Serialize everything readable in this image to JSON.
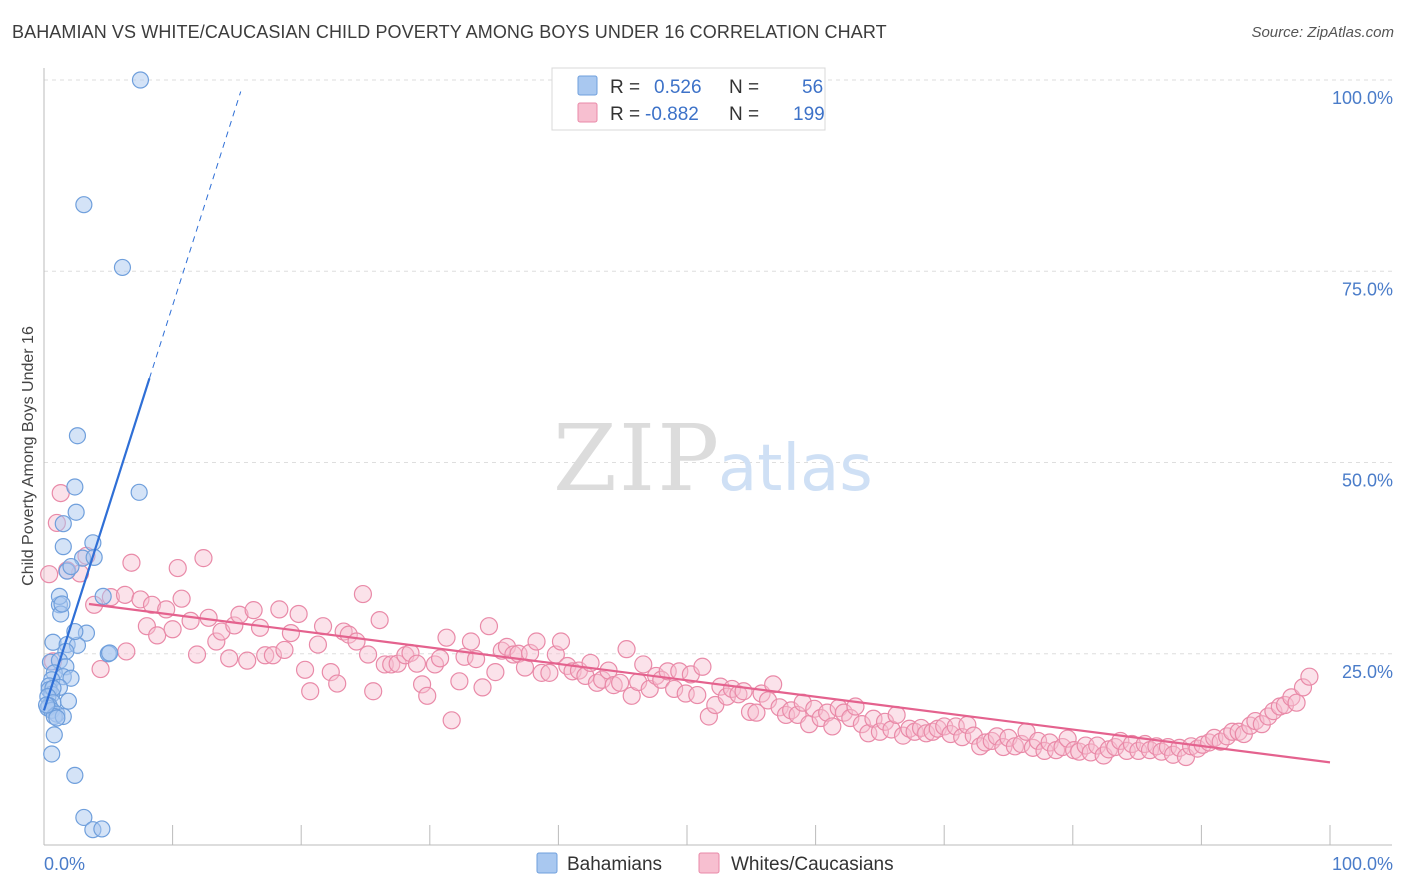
{
  "title": "BAHAMIAN VS WHITE/CAUCASIAN CHILD POVERTY AMONG BOYS UNDER 16 CORRELATION CHART",
  "source": "Source: ZipAtlas.com",
  "watermark": {
    "zip": "ZIP",
    "atlas": "atlas"
  },
  "legend_top": {
    "rows": [
      {
        "r_label": "R =",
        "r_value": "0.526",
        "n_label": "N =",
        "n_value": "56",
        "color": "#a9c8f0",
        "stroke": "#6f9fdc"
      },
      {
        "r_label": "R =",
        "r_value": "-0.882",
        "n_label": "N =",
        "n_value": "199",
        "color": "#f7bfd0",
        "stroke": "#e98aa8"
      }
    ]
  },
  "legend_bottom": {
    "items": [
      {
        "label": "Bahamians",
        "color": "#a9c8f0",
        "stroke": "#6f9fdc"
      },
      {
        "label": "Whites/Caucasians",
        "color": "#f7bfd0",
        "stroke": "#e98aa8"
      }
    ]
  },
  "chart_data": {
    "type": "scatter",
    "title": "BAHAMIAN VS WHITE/CAUCASIAN CHILD POVERTY AMONG BOYS UNDER 16 CORRELATION CHART",
    "xlabel": "",
    "ylabel": "Child Poverty Among Boys Under 16",
    "xlim": [
      0,
      100
    ],
    "ylim": [
      0,
      100
    ],
    "x_tick_labels": [
      "0.0%",
      "100.0%"
    ],
    "y_tick_labels": [
      "25.0%",
      "50.0%",
      "75.0%",
      "100.0%"
    ],
    "y_ticks": [
      25,
      50,
      75,
      100
    ],
    "grid": "horizontal dashed",
    "legend_position": "top-center",
    "colors": {
      "bahamians": "#a9c8f0",
      "bahamians_line": "#2f6fd6",
      "whites": "#f7bfd0",
      "whites_line": "#e4628e"
    },
    "series": [
      {
        "name": "Bahamians",
        "trend": {
          "x": [
            0,
            8.2
          ],
          "y": [
            17.6,
            61.0
          ],
          "dashed_extension": {
            "x": [
              8.2,
              15.3
            ],
            "y": [
              61.0,
              98.5
            ]
          }
        },
        "points": [
          [
            7.5,
            100
          ],
          [
            3.1,
            83.7
          ],
          [
            6.1,
            75.5
          ],
          [
            2.6,
            53.5
          ],
          [
            7.4,
            46.1
          ],
          [
            2.4,
            46.8
          ],
          [
            2.5,
            43.5
          ],
          [
            1.5,
            42.0
          ],
          [
            1.5,
            39.0
          ],
          [
            3.8,
            39.5
          ],
          [
            3.0,
            37.5
          ],
          [
            3.9,
            37.6
          ],
          [
            1.8,
            35.8
          ],
          [
            2.1,
            36.4
          ],
          [
            1.2,
            31.4
          ],
          [
            1.2,
            32.5
          ],
          [
            1.3,
            30.2
          ],
          [
            4.6,
            32.5
          ],
          [
            1.4,
            31.5
          ],
          [
            3.3,
            27.7
          ],
          [
            0.7,
            26.5
          ],
          [
            1.8,
            26.2
          ],
          [
            2.6,
            26.1
          ],
          [
            2.4,
            27.9
          ],
          [
            5.0,
            25.0
          ],
          [
            5.1,
            25.1
          ],
          [
            1.7,
            25.3
          ],
          [
            0.5,
            23.9
          ],
          [
            1.2,
            24.1
          ],
          [
            1.7,
            23.3
          ],
          [
            0.8,
            22.5
          ],
          [
            1.5,
            22.0
          ],
          [
            0.6,
            21.6
          ],
          [
            2.1,
            21.8
          ],
          [
            0.4,
            20.8
          ],
          [
            1.2,
            20.6
          ],
          [
            0.4,
            20.3
          ],
          [
            0.6,
            19.7
          ],
          [
            0.7,
            20.5
          ],
          [
            0.3,
            19.4
          ],
          [
            0.7,
            18.6
          ],
          [
            1.9,
            18.8
          ],
          [
            0.4,
            18.2
          ],
          [
            0.3,
            17.9
          ],
          [
            0.6,
            17.6
          ],
          [
            1.0,
            17.1
          ],
          [
            0.8,
            16.8
          ],
          [
            1.5,
            16.8
          ],
          [
            0.8,
            14.4
          ],
          [
            0.6,
            11.9
          ],
          [
            2.4,
            9.1
          ],
          [
            3.1,
            3.6
          ],
          [
            3.8,
            2.0
          ],
          [
            4.5,
            2.1
          ],
          [
            0.2,
            18.3
          ],
          [
            1.0,
            16.6
          ]
        ]
      },
      {
        "name": "Whites/Caucasians",
        "trend": {
          "x": [
            3.5,
            100
          ],
          "y": [
            31.5,
            10.8
          ]
        },
        "points": [
          [
            0.4,
            35.4
          ],
          [
            1.0,
            42.1
          ],
          [
            1.3,
            46.0
          ],
          [
            2.8,
            35.5
          ],
          [
            3.3,
            37.8
          ],
          [
            3.9,
            31.4
          ],
          [
            4.4,
            23.0
          ],
          [
            5.2,
            32.4
          ],
          [
            6.3,
            32.7
          ],
          [
            6.4,
            25.3
          ],
          [
            6.8,
            36.9
          ],
          [
            7.5,
            32.1
          ],
          [
            8.0,
            28.6
          ],
          [
            8.4,
            31.4
          ],
          [
            8.8,
            27.4
          ],
          [
            9.5,
            30.8
          ],
          [
            10.0,
            28.2
          ],
          [
            10.4,
            36.2
          ],
          [
            10.7,
            32.2
          ],
          [
            11.4,
            29.3
          ],
          [
            11.9,
            24.9
          ],
          [
            12.4,
            37.5
          ],
          [
            12.8,
            29.7
          ],
          [
            13.4,
            26.6
          ],
          [
            13.8,
            27.9
          ],
          [
            14.4,
            24.4
          ],
          [
            14.8,
            28.7
          ],
          [
            15.2,
            30.1
          ],
          [
            15.8,
            24.1
          ],
          [
            16.3,
            30.7
          ],
          [
            16.8,
            28.4
          ],
          [
            17.2,
            24.8
          ],
          [
            17.8,
            24.8
          ],
          [
            18.3,
            30.8
          ],
          [
            18.7,
            25.5
          ],
          [
            19.2,
            27.7
          ],
          [
            19.8,
            30.2
          ],
          [
            20.3,
            22.9
          ],
          [
            20.7,
            20.1
          ],
          [
            21.3,
            26.2
          ],
          [
            21.7,
            28.6
          ],
          [
            22.3,
            22.6
          ],
          [
            22.8,
            21.1
          ],
          [
            23.3,
            27.9
          ],
          [
            23.7,
            27.5
          ],
          [
            24.3,
            26.6
          ],
          [
            24.8,
            32.8
          ],
          [
            25.2,
            24.9
          ],
          [
            25.6,
            20.1
          ],
          [
            26.1,
            29.4
          ],
          [
            26.5,
            23.6
          ],
          [
            27.0,
            23.6
          ],
          [
            27.5,
            23.7
          ],
          [
            28.1,
            24.8
          ],
          [
            28.5,
            25.1
          ],
          [
            29.0,
            23.7
          ],
          [
            29.4,
            21.0
          ],
          [
            29.8,
            19.5
          ],
          [
            30.4,
            23.6
          ],
          [
            30.8,
            24.4
          ],
          [
            31.3,
            27.1
          ],
          [
            31.7,
            16.3
          ],
          [
            32.3,
            21.4
          ],
          [
            32.7,
            24.6
          ],
          [
            33.2,
            26.6
          ],
          [
            33.6,
            24.3
          ],
          [
            34.1,
            20.6
          ],
          [
            34.6,
            28.6
          ],
          [
            35.1,
            22.6
          ],
          [
            35.6,
            25.4
          ],
          [
            36.0,
            25.9
          ],
          [
            36.5,
            24.9
          ],
          [
            36.9,
            25.0
          ],
          [
            37.4,
            23.2
          ],
          [
            37.8,
            25.1
          ],
          [
            38.3,
            26.6
          ],
          [
            38.7,
            22.5
          ],
          [
            39.3,
            22.5
          ],
          [
            39.8,
            24.9
          ],
          [
            40.2,
            26.6
          ],
          [
            40.7,
            23.4
          ],
          [
            41.1,
            22.7
          ],
          [
            41.6,
            22.8
          ],
          [
            42.1,
            22.1
          ],
          [
            42.5,
            23.8
          ],
          [
            43.0,
            21.2
          ],
          [
            43.4,
            21.6
          ],
          [
            43.9,
            22.8
          ],
          [
            44.3,
            20.9
          ],
          [
            44.8,
            21.2
          ],
          [
            45.3,
            25.6
          ],
          [
            45.7,
            19.5
          ],
          [
            46.2,
            21.3
          ],
          [
            46.6,
            23.6
          ],
          [
            47.1,
            20.4
          ],
          [
            47.6,
            22.1
          ],
          [
            48.0,
            21.6
          ],
          [
            48.5,
            22.7
          ],
          [
            49.0,
            20.4
          ],
          [
            49.4,
            22.7
          ],
          [
            49.9,
            19.8
          ],
          [
            50.3,
            22.3
          ],
          [
            50.8,
            19.6
          ],
          [
            51.2,
            23.3
          ],
          [
            51.7,
            16.8
          ],
          [
            52.2,
            18.3
          ],
          [
            52.6,
            20.7
          ],
          [
            53.1,
            19.4
          ],
          [
            53.5,
            20.4
          ],
          [
            54.0,
            19.7
          ],
          [
            54.4,
            20.1
          ],
          [
            54.9,
            17.4
          ],
          [
            55.4,
            17.3
          ],
          [
            55.8,
            19.8
          ],
          [
            56.3,
            18.9
          ],
          [
            56.7,
            21.0
          ],
          [
            57.2,
            18.0
          ],
          [
            57.7,
            17.0
          ],
          [
            58.1,
            17.6
          ],
          [
            58.6,
            17.0
          ],
          [
            59.0,
            18.6
          ],
          [
            59.5,
            15.8
          ],
          [
            59.9,
            17.8
          ],
          [
            60.4,
            16.6
          ],
          [
            60.9,
            17.3
          ],
          [
            61.3,
            15.5
          ],
          [
            61.8,
            17.9
          ],
          [
            62.2,
            17.3
          ],
          [
            62.7,
            16.6
          ],
          [
            63.1,
            18.1
          ],
          [
            63.6,
            15.8
          ],
          [
            64.1,
            14.6
          ],
          [
            64.5,
            16.5
          ],
          [
            65.0,
            14.8
          ],
          [
            65.4,
            16.1
          ],
          [
            65.9,
            15.1
          ],
          [
            66.3,
            17.0
          ],
          [
            66.8,
            14.3
          ],
          [
            67.3,
            15.2
          ],
          [
            67.7,
            14.8
          ],
          [
            68.2,
            15.3
          ],
          [
            68.6,
            14.6
          ],
          [
            69.1,
            14.8
          ],
          [
            69.5,
            15.2
          ],
          [
            70.0,
            15.5
          ],
          [
            70.5,
            14.5
          ],
          [
            70.9,
            15.5
          ],
          [
            71.4,
            14.1
          ],
          [
            71.8,
            15.7
          ],
          [
            72.3,
            14.3
          ],
          [
            72.8,
            12.9
          ],
          [
            73.2,
            13.4
          ],
          [
            73.7,
            13.6
          ],
          [
            74.1,
            14.2
          ],
          [
            74.6,
            12.8
          ],
          [
            75.0,
            14.0
          ],
          [
            75.5,
            12.9
          ],
          [
            76.0,
            13.2
          ],
          [
            76.4,
            14.8
          ],
          [
            76.9,
            12.7
          ],
          [
            77.3,
            13.6
          ],
          [
            77.8,
            12.3
          ],
          [
            78.2,
            13.4
          ],
          [
            78.7,
            12.4
          ],
          [
            79.2,
            12.8
          ],
          [
            79.6,
            13.9
          ],
          [
            80.1,
            12.4
          ],
          [
            80.5,
            12.2
          ],
          [
            81.0,
            13.0
          ],
          [
            81.4,
            12.1
          ],
          [
            81.9,
            13.0
          ],
          [
            82.4,
            11.7
          ],
          [
            82.8,
            12.5
          ],
          [
            83.3,
            12.8
          ],
          [
            83.7,
            13.6
          ],
          [
            84.2,
            12.3
          ],
          [
            84.6,
            13.2
          ],
          [
            85.1,
            12.3
          ],
          [
            85.6,
            13.2
          ],
          [
            86.0,
            12.4
          ],
          [
            86.5,
            12.9
          ],
          [
            86.9,
            12.2
          ],
          [
            87.4,
            12.8
          ],
          [
            87.8,
            11.8
          ],
          [
            88.3,
            12.7
          ],
          [
            88.8,
            11.5
          ],
          [
            89.2,
            12.9
          ],
          [
            89.7,
            12.6
          ],
          [
            90.1,
            13.1
          ],
          [
            90.6,
            13.4
          ],
          [
            91.0,
            14.0
          ],
          [
            91.5,
            13.5
          ],
          [
            92.0,
            14.2
          ],
          [
            92.4,
            14.8
          ],
          [
            92.9,
            14.8
          ],
          [
            93.3,
            14.5
          ],
          [
            93.8,
            15.6
          ],
          [
            94.2,
            16.2
          ],
          [
            94.7,
            15.8
          ],
          [
            95.2,
            16.8
          ],
          [
            95.6,
            17.5
          ],
          [
            96.1,
            18.1
          ],
          [
            96.5,
            18.3
          ],
          [
            97.0,
            19.3
          ],
          [
            97.4,
            18.6
          ],
          [
            97.9,
            20.6
          ],
          [
            98.4,
            22.0
          ],
          [
            1.8,
            35.9
          ],
          [
            0.7,
            24.0
          ]
        ]
      }
    ]
  }
}
